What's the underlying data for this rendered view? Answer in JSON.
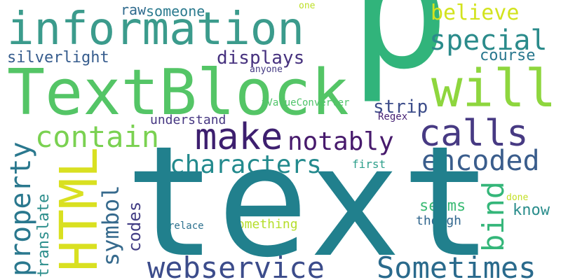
{
  "word_cloud": {
    "words": [
      {
        "text": "p",
        "color": "#31b47b",
        "orientation": "horizontal"
      },
      {
        "text": "text",
        "color": "#21808d",
        "orientation": "horizontal"
      },
      {
        "text": "TextBlock",
        "color": "#54c566",
        "orientation": "horizontal"
      },
      {
        "text": "information",
        "color": "#3b9b8c",
        "orientation": "horizontal"
      },
      {
        "text": "will",
        "color": "#8ed63e",
        "orientation": "horizontal"
      },
      {
        "text": "HTML",
        "color": "#d9e021",
        "orientation": "vertical"
      },
      {
        "text": "calls",
        "color": "#473a83",
        "orientation": "horizontal"
      },
      {
        "text": "make",
        "color": "#3d1f6f",
        "orientation": "horizontal"
      },
      {
        "text": "webservice",
        "color": "#3c4c8b",
        "orientation": "horizontal"
      },
      {
        "text": "Sometimes",
        "color": "#2a6a8c",
        "orientation": "horizontal"
      },
      {
        "text": "special",
        "color": "#2b8b8b",
        "orientation": "horizontal"
      },
      {
        "text": "contain",
        "color": "#7ad151",
        "orientation": "horizontal"
      },
      {
        "text": "encoded",
        "color": "#3a5d8c",
        "orientation": "horizontal"
      },
      {
        "text": "characters",
        "color": "#238a8d",
        "orientation": "horizontal"
      },
      {
        "text": "notably",
        "color": "#471a6c",
        "orientation": "horizontal"
      },
      {
        "text": "property",
        "color": "#2a788e",
        "orientation": "vertical"
      },
      {
        "text": "bind",
        "color": "#34b679",
        "orientation": "vertical"
      },
      {
        "text": "believe",
        "color": "#d2e31e",
        "orientation": "horizontal"
      },
      {
        "text": "symbol",
        "color": "#366a8d",
        "orientation": "vertical"
      },
      {
        "text": "translate",
        "color": "#2c8e8c",
        "orientation": "vertical"
      },
      {
        "text": "silverlight",
        "color": "#365c8d",
        "orientation": "horizontal"
      },
      {
        "text": "displays",
        "color": "#46317e",
        "orientation": "horizontal"
      },
      {
        "text": "course",
        "color": "#28778e",
        "orientation": "horizontal"
      },
      {
        "text": "someone",
        "color": "#2b7a8e",
        "orientation": "horizontal"
      },
      {
        "text": "raw",
        "color": "#2f6a8d",
        "orientation": "horizontal"
      },
      {
        "text": "strip",
        "color": "#3d4d8a",
        "orientation": "horizontal"
      },
      {
        "text": "codes",
        "color": "#433e85",
        "orientation": "vertical"
      },
      {
        "text": "seems",
        "color": "#3cbb75",
        "orientation": "horizontal"
      },
      {
        "text": "know",
        "color": "#2a8d8c",
        "orientation": "horizontal"
      },
      {
        "text": "understand",
        "color": "#453681",
        "orientation": "horizontal"
      },
      {
        "text": "iValueConverter",
        "color": "#50c46a",
        "orientation": "horizontal"
      },
      {
        "text": "Regex",
        "color": "#482475",
        "orientation": "horizontal"
      },
      {
        "text": "first",
        "color": "#2ea08c",
        "orientation": "horizontal"
      },
      {
        "text": "something",
        "color": "#b5de2b",
        "orientation": "horizontal"
      },
      {
        "text": "though",
        "color": "#31678e",
        "orientation": "horizontal"
      },
      {
        "text": "relace",
        "color": "#2d718e",
        "orientation": "horizontal"
      },
      {
        "text": "anyone",
        "color": "#443a83",
        "orientation": "horizontal"
      },
      {
        "text": "one",
        "color": "#bddf26",
        "orientation": "horizontal"
      },
      {
        "text": "done",
        "color": "#c2df23",
        "orientation": "horizontal"
      }
    ]
  }
}
